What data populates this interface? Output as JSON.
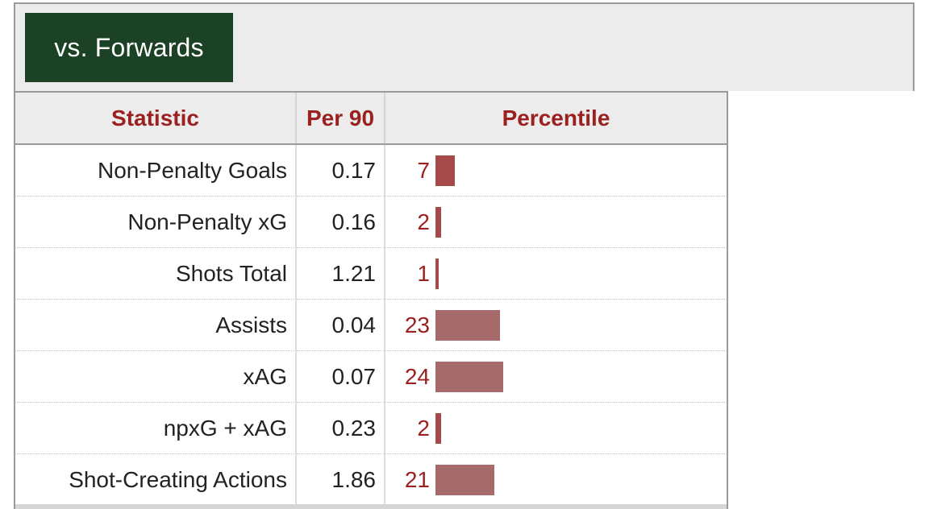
{
  "tab": {
    "label": "vs. Forwards"
  },
  "table": {
    "headers": {
      "statistic": "Statistic",
      "per90": "Per 90",
      "percentile": "Percentile"
    },
    "rows": [
      {
        "stat": "Non-Penalty Goals",
        "per90": "0.17",
        "percentile": "7",
        "percentile_value": 7
      },
      {
        "stat": "Non-Penalty xG",
        "per90": "0.16",
        "percentile": "2",
        "percentile_value": 2
      },
      {
        "stat": "Shots Total",
        "per90": "1.21",
        "percentile": "1",
        "percentile_value": 1
      },
      {
        "stat": "Assists",
        "per90": "0.04",
        "percentile": "23",
        "percentile_value": 23
      },
      {
        "stat": "xAG",
        "per90": "0.07",
        "percentile": "24",
        "percentile_value": 24
      },
      {
        "stat": "npxG + xAG",
        "per90": "0.23",
        "percentile": "2",
        "percentile_value": 2
      },
      {
        "stat": "Shot-Creating Actions",
        "per90": "1.86",
        "percentile": "21",
        "percentile_value": 21
      }
    ]
  },
  "colors": {
    "tab_background": "#1b4225",
    "header_text": "#9b2020",
    "bar_high": "#a66a6a",
    "bar_low": "#a54a4a"
  }
}
